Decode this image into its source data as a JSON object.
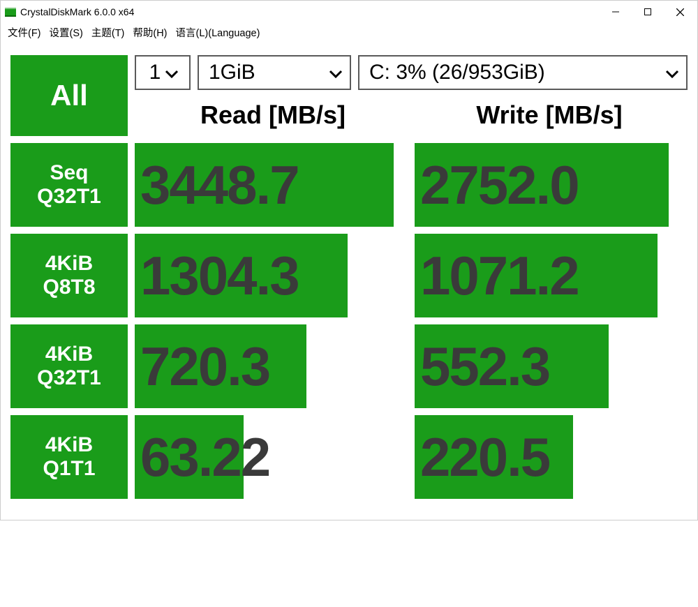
{
  "window": {
    "title": "CrystalDiskMark 6.0.0 x64"
  },
  "menu": {
    "file": "文件(F)",
    "settings": "设置(S)",
    "theme": "主题(T)",
    "help": "帮助(H)",
    "language": "语言(L)(Language)"
  },
  "controls": {
    "all_label": "All",
    "runs": "1",
    "size": "1GiB",
    "drive": "C: 3% (26/953GiB)"
  },
  "headers": {
    "read": "Read [MB/s]",
    "write": "Write [MB/s]"
  },
  "colors": {
    "green": "#1a9c1a",
    "text_value": "#3a3a3a",
    "border": "#5a5a5a",
    "white": "#ffffff"
  },
  "max_value": 3600,
  "tests": [
    {
      "label_line1": "Seq",
      "label_line2": "Q32T1",
      "label_fontsize": 30,
      "read": "3448.7",
      "read_pct": 95,
      "write": "2752.0",
      "write_pct": 93
    },
    {
      "label_line1": "4KiB",
      "label_line2": "Q8T8",
      "label_fontsize": 30,
      "read": "1304.3",
      "read_pct": 78,
      "write": "1071.2",
      "write_pct": 89
    },
    {
      "label_line1": "4KiB",
      "label_line2": "Q32T1",
      "label_fontsize": 30,
      "read": "720.3",
      "read_pct": 63,
      "write": "552.3",
      "write_pct": 71
    },
    {
      "label_line1": "4KiB",
      "label_line2": "Q1T1",
      "label_fontsize": 30,
      "read": "63.22",
      "read_pct": 40,
      "write": "220.5",
      "write_pct": 58
    }
  ]
}
